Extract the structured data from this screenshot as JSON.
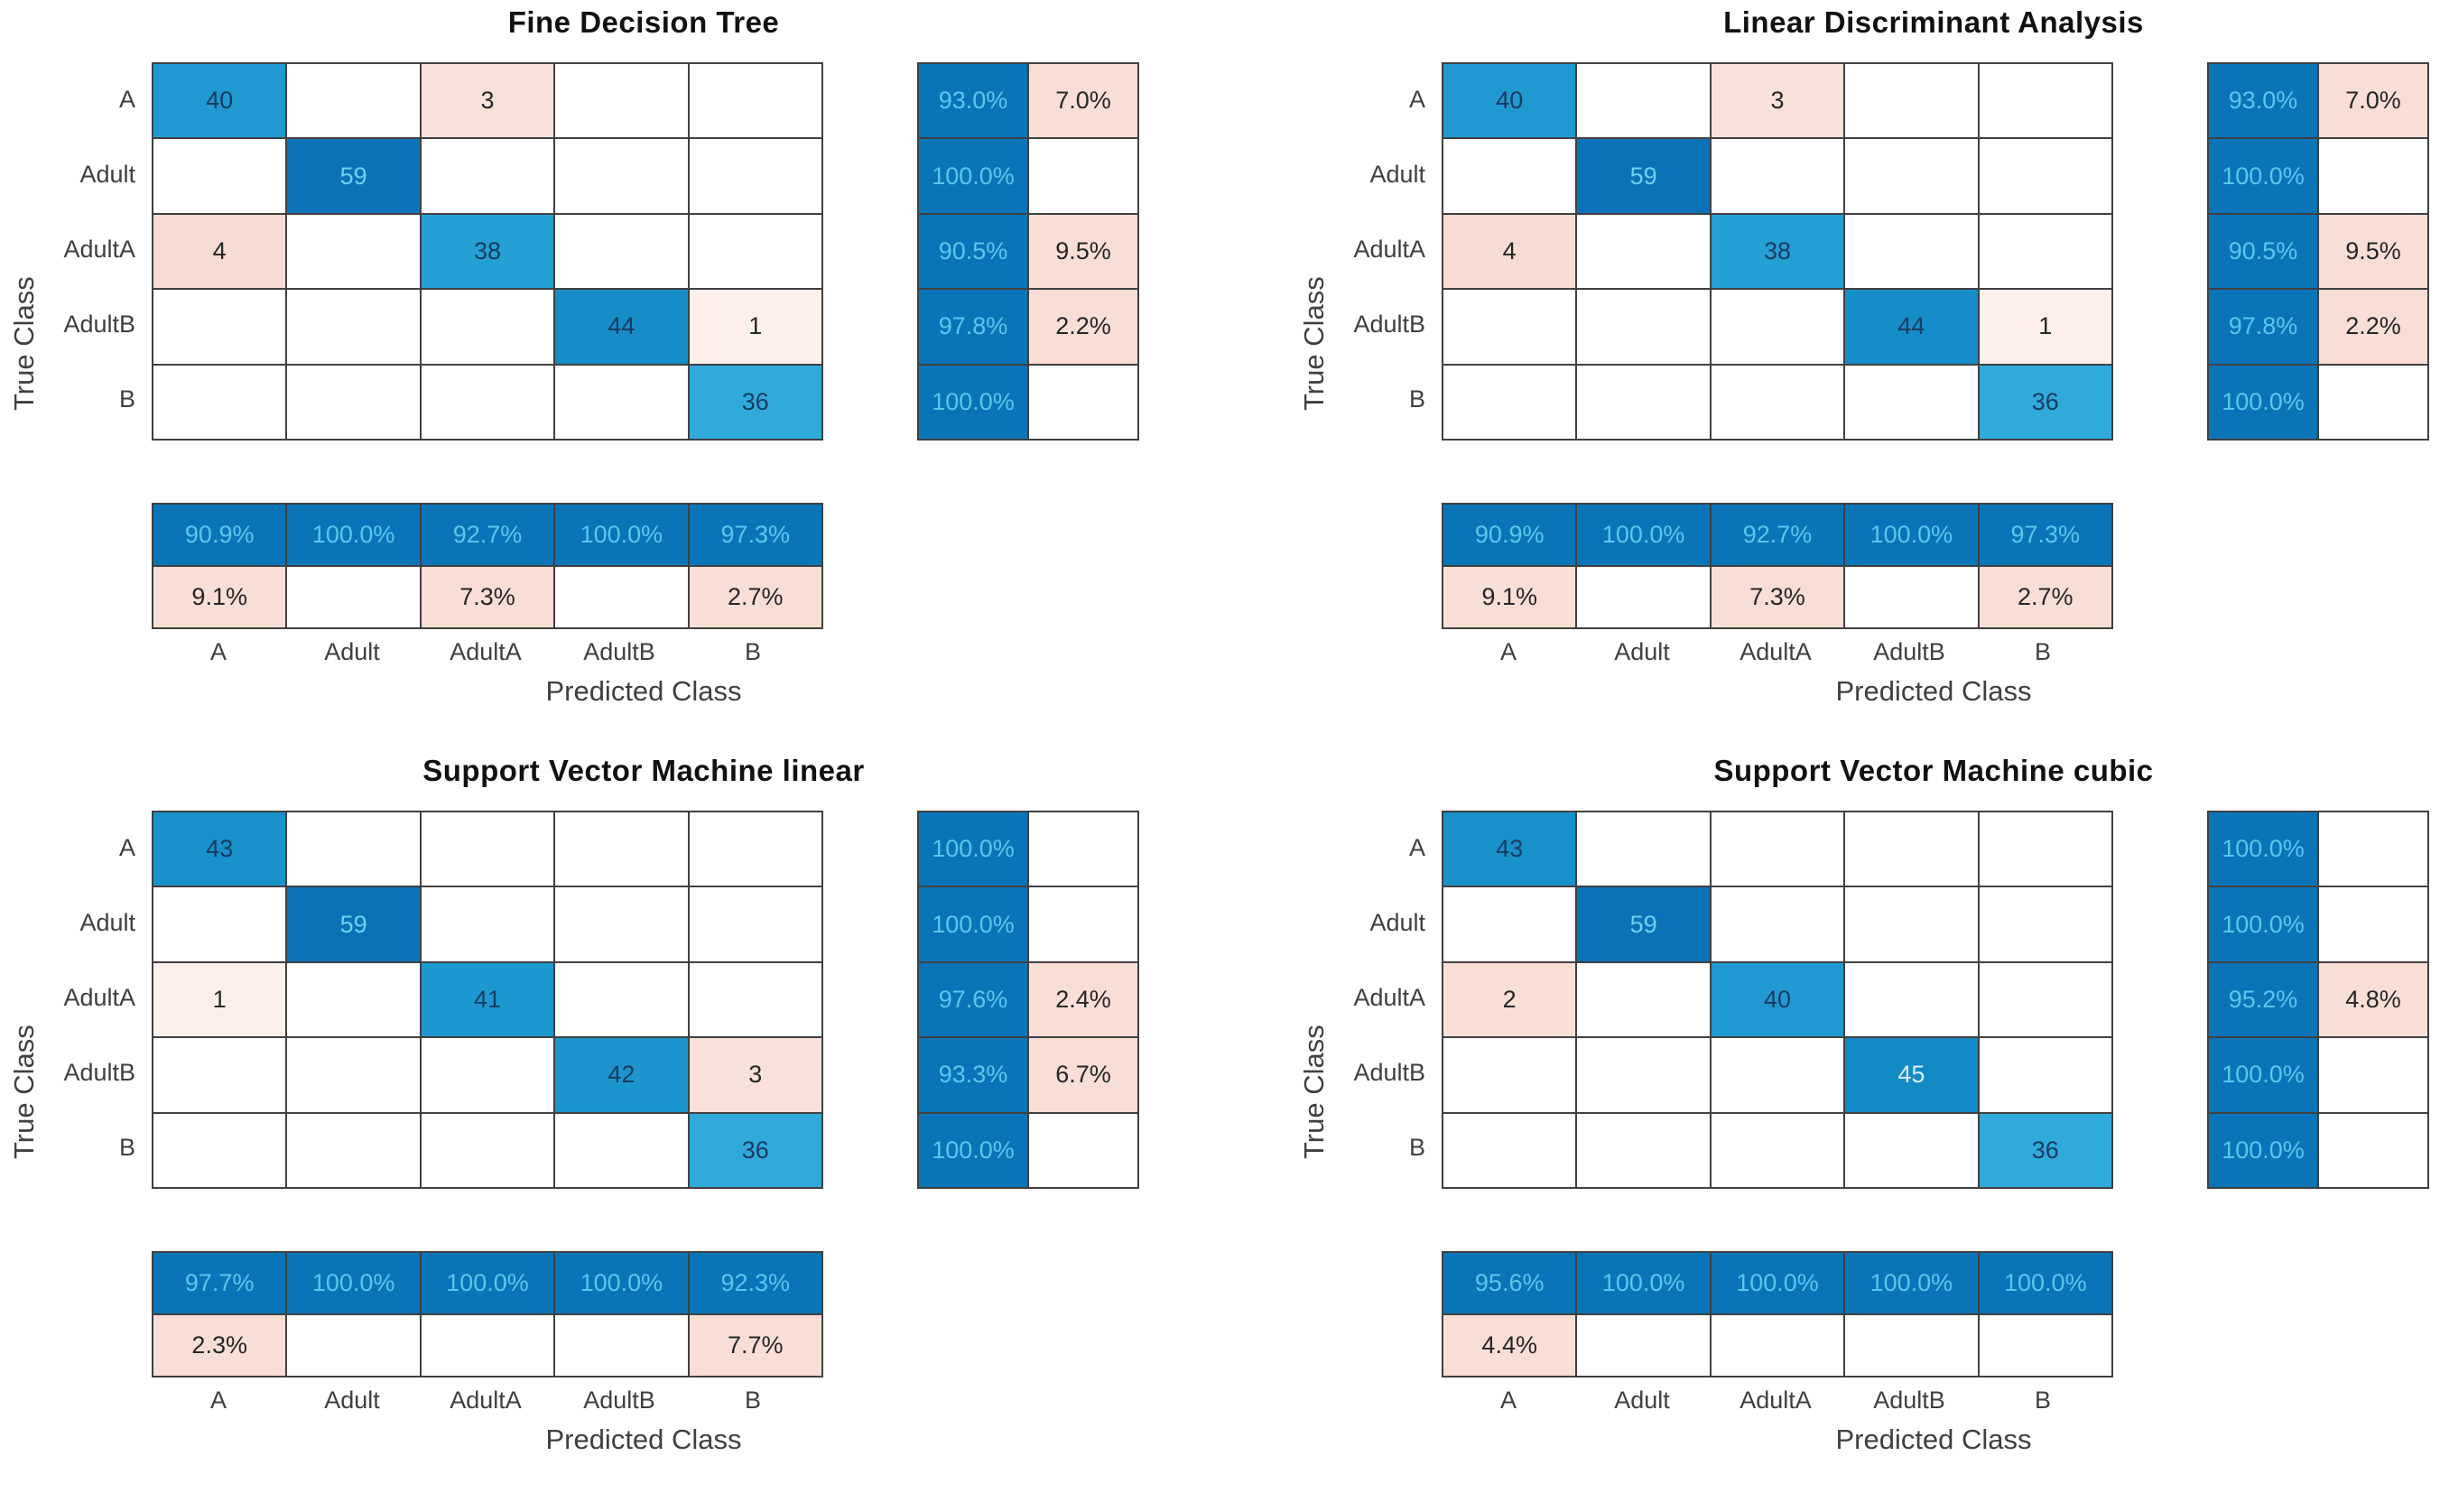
{
  "figure": {
    "description": "Four MATLAB-style confusion matrix charts comparing classifiers",
    "background": "#ffffff"
  },
  "palette": {
    "grid_line": "#404040",
    "tick_color": "#3f3f3f",
    "title_color": "#111111",
    "dark_text": "#262626",
    "navy_text": "#173a5f",
    "summary_blue": "#0a74b9",
    "summary_pink": "#f9ded6",
    "summary_text_light": "#56c9ec",
    "matrix_values": {
      "59": {
        "bg": "#0c72b8",
        "fg": "#6fd0f0"
      },
      "45": {
        "bg": "#1389c6",
        "fg": "#dbeffa"
      },
      "44": {
        "bg": "#168dc9",
        "fg": "#173a5f"
      },
      "43": {
        "bg": "#1991cb",
        "fg": "#173a5f"
      },
      "42": {
        "bg": "#1c95ce",
        "fg": "#173a5f"
      },
      "41": {
        "bg": "#1e98d0",
        "fg": "#173a5f"
      },
      "40": {
        "bg": "#2099d2",
        "fg": "#173a5f"
      },
      "38": {
        "bg": "#24a0d5",
        "fg": "#173a5f"
      },
      "36": {
        "bg": "#30aadb",
        "fg": "#173a5f"
      },
      "4": {
        "bg": "#f8dbd2",
        "fg": "#262626"
      },
      "3": {
        "bg": "#f9e1d9",
        "fg": "#262626"
      },
      "2": {
        "bg": "#f9ded6",
        "fg": "#262626"
      },
      "1": {
        "bg": "#fdf0eb",
        "fg": "#262626"
      }
    }
  },
  "chart_data": [
    {
      "type": "heatmap",
      "title": "Fine Decision Tree",
      "xlabel": "Predicted Class",
      "ylabel": "True Class",
      "x_categories": [
        "A",
        "Adult",
        "AdultA",
        "AdultB",
        "B"
      ],
      "y_categories": [
        "A",
        "Adult",
        "AdultA",
        "AdultB",
        "B"
      ],
      "matrix": [
        [
          40,
          null,
          3,
          null,
          null
        ],
        [
          null,
          59,
          null,
          null,
          null
        ],
        [
          4,
          null,
          38,
          null,
          null
        ],
        [
          null,
          null,
          null,
          44,
          1
        ],
        [
          null,
          null,
          null,
          null,
          36
        ]
      ],
      "row_summary": {
        "tpr": [
          "93.0%",
          "100.0%",
          "90.5%",
          "97.8%",
          "100.0%"
        ],
        "fnr": [
          "7.0%",
          "",
          "9.5%",
          "2.2%",
          ""
        ]
      },
      "col_summary": {
        "ppv": [
          "90.9%",
          "100.0%",
          "92.7%",
          "100.0%",
          "97.3%"
        ],
        "fdr": [
          "9.1%",
          "",
          "7.3%",
          "",
          "2.7%"
        ]
      }
    },
    {
      "type": "heatmap",
      "title": "Linear Discriminant Analysis",
      "xlabel": "Predicted Class",
      "ylabel": "True Class",
      "x_categories": [
        "A",
        "Adult",
        "AdultA",
        "AdultB",
        "B"
      ],
      "y_categories": [
        "A",
        "Adult",
        "AdultA",
        "AdultB",
        "B"
      ],
      "matrix": [
        [
          40,
          null,
          3,
          null,
          null
        ],
        [
          null,
          59,
          null,
          null,
          null
        ],
        [
          4,
          null,
          38,
          null,
          null
        ],
        [
          null,
          null,
          null,
          44,
          1
        ],
        [
          null,
          null,
          null,
          null,
          36
        ]
      ],
      "row_summary": {
        "tpr": [
          "93.0%",
          "100.0%",
          "90.5%",
          "97.8%",
          "100.0%"
        ],
        "fnr": [
          "7.0%",
          "",
          "9.5%",
          "2.2%",
          ""
        ]
      },
      "col_summary": {
        "ppv": [
          "90.9%",
          "100.0%",
          "92.7%",
          "100.0%",
          "97.3%"
        ],
        "fdr": [
          "9.1%",
          "",
          "7.3%",
          "",
          "2.7%"
        ]
      }
    },
    {
      "type": "heatmap",
      "title": "Support Vector Machine linear",
      "xlabel": "Predicted Class",
      "ylabel": "True Class",
      "x_categories": [
        "A",
        "Adult",
        "AdultA",
        "AdultB",
        "B"
      ],
      "y_categories": [
        "A",
        "Adult",
        "AdultA",
        "AdultB",
        "B"
      ],
      "matrix": [
        [
          43,
          null,
          null,
          null,
          null
        ],
        [
          null,
          59,
          null,
          null,
          null
        ],
        [
          1,
          null,
          41,
          null,
          null
        ],
        [
          null,
          null,
          null,
          42,
          3
        ],
        [
          null,
          null,
          null,
          null,
          36
        ]
      ],
      "row_summary": {
        "tpr": [
          "100.0%",
          "100.0%",
          "97.6%",
          "93.3%",
          "100.0%"
        ],
        "fnr": [
          "",
          "",
          "2.4%",
          "6.7%",
          ""
        ]
      },
      "col_summary": {
        "ppv": [
          "97.7%",
          "100.0%",
          "100.0%",
          "100.0%",
          "92.3%"
        ],
        "fdr": [
          "2.3%",
          "",
          "",
          "",
          "7.7%"
        ]
      }
    },
    {
      "type": "heatmap",
      "title": "Support Vector Machine cubic",
      "xlabel": "Predicted Class",
      "ylabel": "True Class",
      "x_categories": [
        "A",
        "Adult",
        "AdultA",
        "AdultB",
        "B"
      ],
      "y_categories": [
        "A",
        "Adult",
        "AdultA",
        "AdultB",
        "B"
      ],
      "matrix": [
        [
          43,
          null,
          null,
          null,
          null
        ],
        [
          null,
          59,
          null,
          null,
          null
        ],
        [
          2,
          null,
          40,
          null,
          null
        ],
        [
          null,
          null,
          null,
          45,
          null
        ],
        [
          null,
          null,
          null,
          null,
          36
        ]
      ],
      "row_summary": {
        "tpr": [
          "100.0%",
          "100.0%",
          "95.2%",
          "100.0%",
          "100.0%"
        ],
        "fnr": [
          "",
          "",
          "4.8%",
          "",
          ""
        ]
      },
      "col_summary": {
        "ppv": [
          "95.6%",
          "100.0%",
          "100.0%",
          "100.0%",
          "100.0%"
        ],
        "fdr": [
          "4.4%",
          "",
          "",
          "",
          ""
        ]
      }
    }
  ]
}
